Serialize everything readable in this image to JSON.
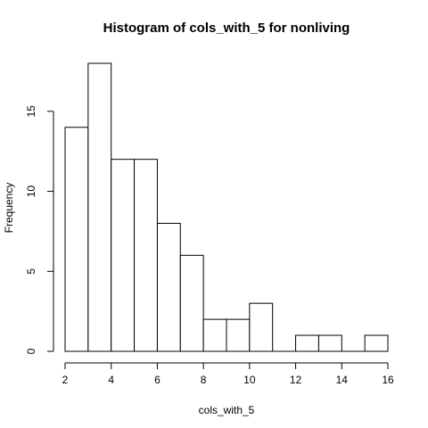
{
  "chart_data": {
    "type": "bar",
    "title": "Histogram of cols_with_5 for nonliving",
    "xlabel": "cols_with_5",
    "ylabel": "Frequency",
    "bins": [
      {
        "start": 2,
        "end": 3,
        "count": 14
      },
      {
        "start": 3,
        "end": 4,
        "count": 18
      },
      {
        "start": 4,
        "end": 5,
        "count": 12
      },
      {
        "start": 5,
        "end": 6,
        "count": 12
      },
      {
        "start": 6,
        "end": 7,
        "count": 8
      },
      {
        "start": 7,
        "end": 8,
        "count": 6
      },
      {
        "start": 8,
        "end": 9,
        "count": 2
      },
      {
        "start": 9,
        "end": 10,
        "count": 2
      },
      {
        "start": 10,
        "end": 11,
        "count": 3
      },
      {
        "start": 11,
        "end": 12,
        "count": 0
      },
      {
        "start": 12,
        "end": 13,
        "count": 1
      },
      {
        "start": 13,
        "end": 14,
        "count": 1
      },
      {
        "start": 14,
        "end": 15,
        "count": 0
      },
      {
        "start": 15,
        "end": 16,
        "count": 1
      }
    ],
    "xlim": [
      2,
      16
    ],
    "ylim": [
      0,
      18
    ],
    "x_ticks": [
      2,
      4,
      6,
      8,
      10,
      12,
      14,
      16
    ],
    "y_ticks": [
      0,
      5,
      10,
      15
    ],
    "grid": false
  }
}
